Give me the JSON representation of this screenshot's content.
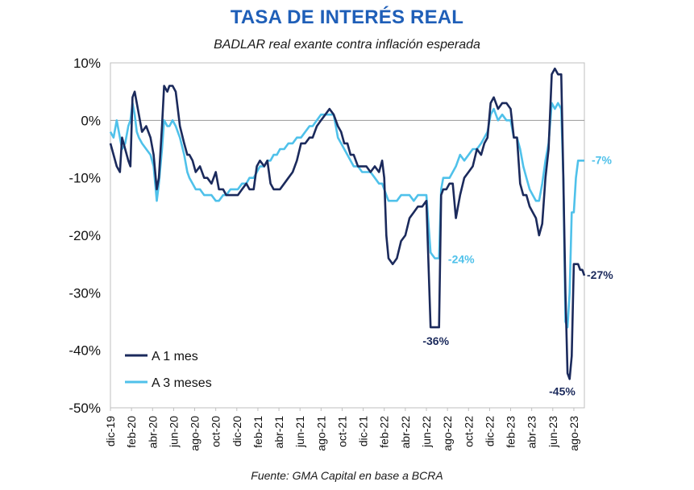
{
  "header": {
    "title": "TASA DE INTERÉS REAL",
    "subtitle": "BADLAR real exante contra inflación esperada"
  },
  "footer": {
    "source": "Fuente: GMA Capital en base a BCRA"
  },
  "colors": {
    "series1": "#1b2a5c",
    "series2": "#4fc1ea",
    "title": "#1f5fb8"
  },
  "chart_data": {
    "type": "line",
    "title": "TASA DE INTERÉS REAL",
    "subtitle": "BADLAR real exante contra inflación esperada",
    "xlabel": "",
    "ylabel": "",
    "ylim": [
      -50,
      10
    ],
    "ytick_values": [
      10,
      0,
      -10,
      -20,
      -30,
      -40,
      -50
    ],
    "yticks": [
      "10%",
      "0%",
      "-10%",
      "-20%",
      "-30%",
      "-40%",
      "-50%"
    ],
    "x_range_months": [
      0,
      45
    ],
    "xticks": [
      {
        "label": "dic-19",
        "m": 0
      },
      {
        "label": "feb-20",
        "m": 2
      },
      {
        "label": "abr-20",
        "m": 4
      },
      {
        "label": "jun-20",
        "m": 6
      },
      {
        "label": "ago-20",
        "m": 8
      },
      {
        "label": "oct-20",
        "m": 10
      },
      {
        "label": "dic-20",
        "m": 12
      },
      {
        "label": "feb-21",
        "m": 14
      },
      {
        "label": "abr-21",
        "m": 16
      },
      {
        "label": "jun-21",
        "m": 18
      },
      {
        "label": "ago-21",
        "m": 20
      },
      {
        "label": "oct-21",
        "m": 22
      },
      {
        "label": "dic-21",
        "m": 24
      },
      {
        "label": "feb-22",
        "m": 26
      },
      {
        "label": "abr-22",
        "m": 28
      },
      {
        "label": "jun-22",
        "m": 30
      },
      {
        "label": "ago-22",
        "m": 32
      },
      {
        "label": "oct-22",
        "m": 34
      },
      {
        "label": "dic-22",
        "m": 36
      },
      {
        "label": "feb-23",
        "m": 38
      },
      {
        "label": "abr-23",
        "m": 40
      },
      {
        "label": "jun-23",
        "m": 42
      },
      {
        "label": "ago-23",
        "m": 44
      }
    ],
    "legend_position": "bottom-left",
    "series": [
      {
        "name": "A 1 mes",
        "x": [
          0,
          0.3,
          0.6,
          0.9,
          1.1,
          1.4,
          1.7,
          1.9,
          2.1,
          2.3,
          2.5,
          2.7,
          3.0,
          3.4,
          3.8,
          4.1,
          4.4,
          4.6,
          4.9,
          5.1,
          5.4,
          5.6,
          5.9,
          6.2,
          6.6,
          7.0,
          7.3,
          7.5,
          7.8,
          8.1,
          8.5,
          8.9,
          9.2,
          9.6,
          10.0,
          10.3,
          10.7,
          11.0,
          11.4,
          11.8,
          12.1,
          12.5,
          12.9,
          13.2,
          13.6,
          13.9,
          14.2,
          14.6,
          14.9,
          15.2,
          15.5,
          15.8,
          16.1,
          16.5,
          16.9,
          17.3,
          17.7,
          18.1,
          18.5,
          18.9,
          19.2,
          19.6,
          20.0,
          20.4,
          20.8,
          21.2,
          21.6,
          21.9,
          22.2,
          22.5,
          22.8,
          23.1,
          23.5,
          23.9,
          24.3,
          24.7,
          25.1,
          25.5,
          25.8,
          26.0,
          26.2,
          26.4,
          26.8,
          27.2,
          27.6,
          28.0,
          28.4,
          28.8,
          29.2,
          29.6,
          30.0,
          30.4,
          30.8,
          31.0,
          31.2,
          31.4,
          31.6,
          31.9,
          32.2,
          32.5,
          32.8,
          33.2,
          33.6,
          34.0,
          34.4,
          34.8,
          35.2,
          35.5,
          35.8,
          36.1,
          36.4,
          36.8,
          37.2,
          37.6,
          38.0,
          38.3,
          38.6,
          38.9,
          39.2,
          39.5,
          39.8,
          40.1,
          40.4,
          40.7,
          41.0,
          41.3,
          41.6,
          41.9,
          42.2,
          42.5,
          42.8,
          43.0,
          43.2,
          43.4,
          43.6,
          43.8,
          44.0,
          44.2,
          44.4,
          44.6,
          44.8,
          45.0
        ],
        "values": [
          -4,
          -6,
          -8,
          -9,
          -3,
          -5,
          -7,
          -8,
          4,
          5,
          3,
          1,
          -2,
          -1,
          -3,
          -6,
          -12,
          -10,
          -1,
          6,
          5,
          6,
          6,
          5,
          -1,
          -4,
          -6,
          -6,
          -7,
          -9,
          -8,
          -10,
          -10,
          -11,
          -9,
          -12,
          -12,
          -13,
          -13,
          -13,
          -13,
          -12,
          -11,
          -12,
          -12,
          -8,
          -7,
          -8,
          -7,
          -11,
          -12,
          -12,
          -12,
          -11,
          -10,
          -9,
          -7,
          -4,
          -4,
          -3,
          -3,
          -1,
          0,
          1,
          2,
          1,
          -1,
          -2,
          -4,
          -4,
          -6,
          -6,
          -8,
          -8,
          -8,
          -9,
          -8,
          -9,
          -7,
          -10,
          -20,
          -24,
          -25,
          -24,
          -21,
          -20,
          -17,
          -16,
          -15,
          -15,
          -14,
          -36,
          -36,
          -36,
          -36,
          -13,
          -12,
          -12,
          -11,
          -11,
          -17,
          -13,
          -10,
          -9,
          -8,
          -5,
          -6,
          -4,
          -3,
          3,
          4,
          2,
          3,
          3,
          2,
          -3,
          -3,
          -11,
          -13,
          -13,
          -15,
          -16,
          -17,
          -20,
          -18,
          -10,
          -5,
          8,
          9,
          8,
          8,
          -10,
          -30,
          -44,
          -45,
          -41,
          -25,
          -25,
          -25,
          -26,
          -26,
          -27
        ]
      },
      {
        "name": "A 3 meses",
        "x": [
          0,
          0.3,
          0.6,
          0.9,
          1.1,
          1.4,
          1.7,
          1.9,
          2.1,
          2.3,
          2.5,
          2.7,
          3.0,
          3.4,
          3.8,
          4.1,
          4.4,
          4.6,
          4.9,
          5.1,
          5.4,
          5.6,
          5.9,
          6.2,
          6.6,
          7.0,
          7.3,
          7.5,
          7.8,
          8.1,
          8.5,
          8.9,
          9.2,
          9.6,
          10.0,
          10.3,
          10.7,
          11.0,
          11.4,
          11.8,
          12.1,
          12.5,
          12.9,
          13.2,
          13.6,
          13.9,
          14.2,
          14.6,
          14.9,
          15.2,
          15.5,
          15.8,
          16.1,
          16.5,
          16.9,
          17.3,
          17.7,
          18.1,
          18.5,
          18.9,
          19.2,
          19.6,
          20.0,
          20.4,
          20.8,
          21.2,
          21.6,
          21.9,
          22.2,
          22.5,
          22.8,
          23.1,
          23.5,
          23.9,
          24.3,
          24.7,
          25.1,
          25.5,
          25.8,
          26.0,
          26.2,
          26.4,
          26.8,
          27.2,
          27.6,
          28.0,
          28.4,
          28.8,
          29.2,
          29.6,
          30.0,
          30.4,
          30.8,
          31.0,
          31.2,
          31.4,
          31.6,
          31.9,
          32.2,
          32.5,
          32.8,
          33.2,
          33.6,
          34.0,
          34.4,
          34.8,
          35.2,
          35.5,
          35.8,
          36.1,
          36.4,
          36.8,
          37.2,
          37.6,
          38.0,
          38.3,
          38.6,
          38.9,
          39.2,
          39.5,
          39.8,
          40.1,
          40.4,
          40.7,
          41.0,
          41.3,
          41.6,
          41.9,
          42.2,
          42.5,
          42.8,
          43.0,
          43.2,
          43.4,
          43.6,
          43.8,
          44.0,
          44.2,
          44.4,
          44.6,
          44.8,
          45.0
        ],
        "values": [
          -2,
          -3,
          0,
          -3,
          -5,
          -4,
          -1,
          0,
          3,
          1,
          -2,
          -3,
          -4,
          -5,
          -6,
          -8,
          -14,
          -11,
          -5,
          0,
          -1,
          -1,
          0,
          -1,
          -3,
          -6,
          -9,
          -10,
          -11,
          -12,
          -12,
          -13,
          -13,
          -13,
          -14,
          -14,
          -13,
          -13,
          -12,
          -12,
          -12,
          -11,
          -11,
          -10,
          -10,
          -9,
          -8,
          -8,
          -7,
          -7,
          -6,
          -6,
          -5,
          -5,
          -4,
          -4,
          -3,
          -3,
          -2,
          -1,
          -1,
          0,
          1,
          1,
          1,
          1,
          -3,
          -4,
          -5,
          -6,
          -7,
          -8,
          -8,
          -9,
          -9,
          -9,
          -10,
          -11,
          -11,
          -12,
          -13,
          -14,
          -14,
          -14,
          -13,
          -13,
          -13,
          -14,
          -13,
          -13,
          -13,
          -23,
          -24,
          -24,
          -24,
          -12,
          -10,
          -10,
          -10,
          -9,
          -8,
          -6,
          -7,
          -6,
          -5,
          -5,
          -4,
          -3,
          -2,
          1,
          2,
          0,
          1,
          0,
          0,
          -3,
          -3,
          -5,
          -8,
          -10,
          -12,
          -13,
          -14,
          -14,
          -11,
          -7,
          -4,
          3,
          2,
          3,
          2,
          -10,
          -35,
          -36,
          -30,
          -16,
          -16,
          -10,
          -7,
          -7,
          -7,
          -7
        ]
      }
    ],
    "annotations": [
      {
        "text": "-36%",
        "series": "A 1 mes",
        "x": 31.2,
        "y": -36
      },
      {
        "text": "-24%",
        "series": "A 3 meses",
        "x": 31.6,
        "y": -24
      },
      {
        "text": "-45%",
        "series": "A 1 mes",
        "x": 43.2,
        "y": -45
      },
      {
        "text": "-27%",
        "series": "A 1 mes",
        "x": 45.0,
        "y": -27
      },
      {
        "text": "-7%",
        "series": "A 3 meses",
        "x": 45.0,
        "y": -7
      }
    ]
  }
}
